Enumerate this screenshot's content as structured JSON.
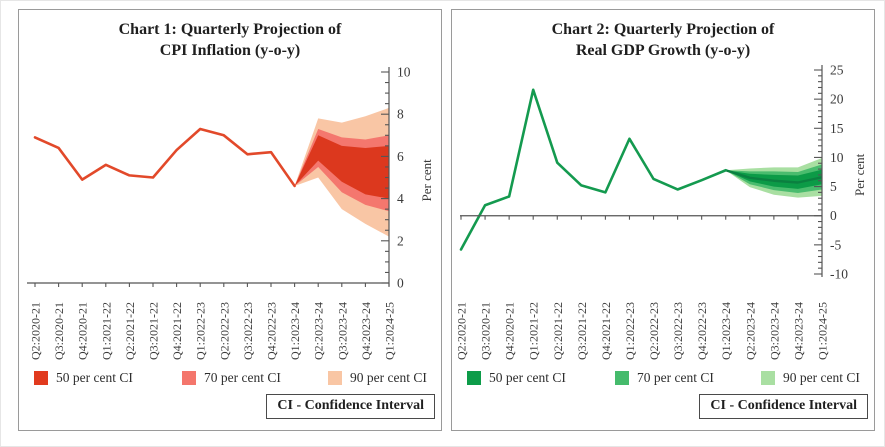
{
  "chart_data": [
    {
      "type": "fan-line",
      "title_line1": "Chart 1: Quarterly Projection of",
      "title_line2": "CPI Inflation (y-o-y)",
      "ylabel": "Per cent",
      "ylim": [
        0,
        10
      ],
      "y_label_step": 2,
      "y_minor_step": 0.5,
      "grid": false,
      "legend_position": "bottom",
      "categories": [
        "Q2:2020-21",
        "Q3:2020-21",
        "Q4:2020-21",
        "Q1:2021-22",
        "Q2:2021-22",
        "Q3:2021-22",
        "Q4:2021-22",
        "Q1:2022-23",
        "Q2:2022-23",
        "Q3:2022-23",
        "Q4:2022-23",
        "Q1:2023-24",
        "Q2:2023-24",
        "Q3:2023-24",
        "Q4:2023-24",
        "Q1:2024-25"
      ],
      "actual": [
        6.9,
        6.4,
        4.9,
        5.6,
        5.1,
        5.0,
        6.3,
        7.3,
        7.0,
        6.1,
        6.2,
        4.6
      ],
      "projection": {
        "quarters": [
          "Q2:2023-24",
          "Q3:2023-24",
          "Q4:2023-24",
          "Q1:2024-25"
        ],
        "mean": [
          6.4,
          5.6,
          5.2,
          5.2
        ],
        "ci50": [
          [
            5.8,
            7.0
          ],
          [
            4.8,
            6.5
          ],
          [
            4.2,
            6.4
          ],
          [
            4.0,
            6.5
          ]
        ],
        "ci70": [
          [
            5.5,
            7.3
          ],
          [
            4.3,
            6.9
          ],
          [
            3.7,
            6.8
          ],
          [
            3.4,
            7.0
          ]
        ],
        "ci90": [
          [
            5.0,
            7.8
          ],
          [
            3.5,
            7.6
          ],
          [
            2.8,
            7.9
          ],
          [
            2.2,
            8.3
          ]
        ]
      },
      "colors": {
        "line": "#e2492a",
        "ci50": "#dc381e",
        "ci70": "#f4776e",
        "ci90": "#f9c6a5",
        "mean_line": null
      },
      "legend": [
        {
          "label": "50 per cent CI",
          "color": "#e13a1e"
        },
        {
          "label": "70 per cent CI",
          "color": "#f4766c"
        },
        {
          "label": "90 per cent CI",
          "color": "#f9c6a4"
        }
      ],
      "ci_note": "CI - Confidence Interval"
    },
    {
      "type": "fan-line",
      "title_line1": "Chart 2: Quarterly Projection of",
      "title_line2": "Real GDP Growth (y-o-y)",
      "ylabel": "Per cent",
      "ylim": [
        -10,
        25
      ],
      "y_label_step": 5,
      "y_minor_step": 1,
      "grid": false,
      "legend_position": "bottom",
      "categories": [
        "Q2:2020-21",
        "Q3:2020-21",
        "Q4:2020-21",
        "Q1:2021-22",
        "Q2:2021-22",
        "Q3:2021-22",
        "Q4:2021-22",
        "Q1:2022-23",
        "Q2:2022-23",
        "Q3:2022-23",
        "Q4:2022-23",
        "Q1:2023-24",
        "Q2:2023-24",
        "Q3:2023-24",
        "Q4:2023-24",
        "Q1:2024-25"
      ],
      "actual": [
        -5.8,
        1.8,
        3.3,
        21.6,
        9.1,
        5.2,
        4.0,
        13.2,
        6.3,
        4.5,
        6.1,
        7.8
      ],
      "projection": {
        "quarters": [
          "Q2:2023-24",
          "Q3:2023-24",
          "Q4:2023-24",
          "Q1:2024-25"
        ],
        "mean": [
          6.5,
          6.0,
          5.7,
          6.6
        ],
        "ci50": [
          [
            5.9,
            7.2
          ],
          [
            5.0,
            7.0
          ],
          [
            4.6,
            6.9
          ],
          [
            5.4,
            7.9
          ]
        ],
        "ci70": [
          [
            5.4,
            7.6
          ],
          [
            4.4,
            7.6
          ],
          [
            3.9,
            7.5
          ],
          [
            4.5,
            8.8
          ]
        ],
        "ci90": [
          [
            4.9,
            8.1
          ],
          [
            3.6,
            8.3
          ],
          [
            3.1,
            8.3
          ],
          [
            3.4,
            9.9
          ]
        ]
      },
      "colors": {
        "line": "#149a4f",
        "ci50": "#0c9b47",
        "ci70": "#4abc6e",
        "ci90": "#a9dfa2",
        "mean_line": "#0b8040"
      },
      "legend": [
        {
          "label": "50 per cent CI",
          "color": "#0d9c49"
        },
        {
          "label": "70 per cent CI",
          "color": "#45bb6c"
        },
        {
          "label": "90 per cent CI",
          "color": "#a9dfa2"
        }
      ],
      "ci_note": "CI - Confidence Interval"
    }
  ]
}
